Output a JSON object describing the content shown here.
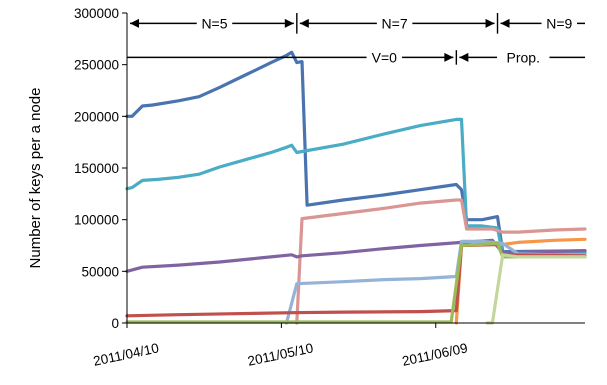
{
  "chart_data": {
    "type": "line",
    "title": "",
    "xlabel": "",
    "ylabel": "Number of keys per a node",
    "x_start": "2011/04/10",
    "x_end": "2011/07/08",
    "x_ticks": [
      "2011/04/10",
      "2011/05/10",
      "2011/06/09"
    ],
    "ylim": [
      0,
      300000
    ],
    "y_ticks": [
      0,
      50000,
      100000,
      150000,
      200000,
      250000,
      300000
    ],
    "y_tick_labels": [
      "0",
      "50000",
      "100000",
      "150000",
      "200000",
      "250000",
      "300000"
    ],
    "grid": false,
    "legend": "none",
    "series": [
      {
        "color": "#4a74b0",
        "points": [
          [
            "2011/04/10",
            200000
          ],
          [
            "2011/04/11",
            200000
          ],
          [
            "2011/04/13",
            210000
          ],
          [
            "2011/04/15",
            211000
          ],
          [
            "2011/04/20",
            215000
          ],
          [
            "2011/04/24",
            219000
          ],
          [
            "2011/04/28",
            228000
          ],
          [
            "2011/05/03",
            240000
          ],
          [
            "2011/05/08",
            252000
          ],
          [
            "2011/05/11",
            259000
          ],
          [
            "2011/05/12",
            262000
          ],
          [
            "2011/05/13",
            252000
          ],
          [
            "2011/05/14",
            253000
          ],
          [
            "2011/05/15",
            114000
          ],
          [
            "2011/05/22",
            119000
          ],
          [
            "2011/05/30",
            124000
          ],
          [
            "2011/06/06",
            129000
          ],
          [
            "2011/06/13",
            134000
          ],
          [
            "2011/06/14",
            129000
          ],
          [
            "2011/06/15",
            100000
          ],
          [
            "2011/06/18",
            100000
          ],
          [
            "2011/06/21",
            103000
          ],
          [
            "2011/06/22",
            69000
          ],
          [
            "2011/07/08",
            70000
          ]
        ]
      },
      {
        "color": "#4bacc6",
        "points": [
          [
            "2011/04/10",
            130000
          ],
          [
            "2011/04/11",
            131000
          ],
          [
            "2011/04/13",
            138000
          ],
          [
            "2011/04/16",
            139000
          ],
          [
            "2011/04/20",
            141000
          ],
          [
            "2011/04/24",
            144000
          ],
          [
            "2011/04/28",
            151000
          ],
          [
            "2011/05/03",
            158000
          ],
          [
            "2011/05/08",
            165000
          ],
          [
            "2011/05/11",
            170000
          ],
          [
            "2011/05/12",
            172000
          ],
          [
            "2011/05/13",
            165000
          ],
          [
            "2011/05/14",
            166000
          ],
          [
            "2011/05/22",
            173000
          ],
          [
            "2011/05/30",
            183000
          ],
          [
            "2011/06/06",
            191000
          ],
          [
            "2011/06/13",
            197000
          ],
          [
            "2011/06/14",
            197000
          ],
          [
            "2011/06/15",
            94000
          ],
          [
            "2011/06/18",
            94000
          ],
          [
            "2011/06/21",
            92000
          ],
          [
            "2011/06/22",
            66000
          ],
          [
            "2011/07/08",
            68000
          ]
        ]
      },
      {
        "color": "#d99694",
        "points": [
          [
            "2011/05/13",
            0
          ],
          [
            "2011/05/14",
            101000
          ],
          [
            "2011/05/22",
            106000
          ],
          [
            "2011/05/30",
            111000
          ],
          [
            "2011/06/06",
            116000
          ],
          [
            "2011/06/13",
            119000
          ],
          [
            "2011/06/14",
            119000
          ],
          [
            "2011/06/15",
            91000
          ],
          [
            "2011/06/20",
            91000
          ],
          [
            "2011/06/22",
            88000
          ],
          [
            "2011/06/25",
            88000
          ],
          [
            "2011/07/02",
            90000
          ],
          [
            "2011/07/08",
            91000
          ]
        ]
      },
      {
        "color": "#8064a2",
        "points": [
          [
            "2011/04/10",
            50000
          ],
          [
            "2011/04/13",
            54000
          ],
          [
            "2011/04/20",
            56000
          ],
          [
            "2011/04/28",
            59000
          ],
          [
            "2011/05/06",
            63000
          ],
          [
            "2011/05/12",
            66000
          ],
          [
            "2011/05/13",
            64000
          ],
          [
            "2011/05/14",
            65000
          ],
          [
            "2011/05/22",
            68000
          ],
          [
            "2011/05/30",
            72000
          ],
          [
            "2011/06/06",
            75000
          ],
          [
            "2011/06/14",
            78000
          ],
          [
            "2011/06/20",
            80000
          ],
          [
            "2011/06/22",
            68000
          ],
          [
            "2011/07/08",
            70000
          ]
        ]
      },
      {
        "color": "#f79646",
        "points": [
          [
            "2011/06/13",
            0
          ],
          [
            "2011/06/14",
            75000
          ],
          [
            "2011/06/20",
            76000
          ],
          [
            "2011/06/22",
            76000
          ],
          [
            "2011/06/25",
            78000
          ],
          [
            "2011/07/02",
            80000
          ],
          [
            "2011/07/08",
            81000
          ]
        ]
      },
      {
        "color": "#95b3d7",
        "points": [
          [
            "2011/05/11",
            0
          ],
          [
            "2011/05/13",
            38000
          ],
          [
            "2011/05/22",
            40000
          ],
          [
            "2011/05/30",
            42000
          ],
          [
            "2011/06/06",
            43000
          ],
          [
            "2011/06/13",
            45000
          ],
          [
            "2011/06/14",
            79000
          ],
          [
            "2011/06/18",
            79000
          ],
          [
            "2011/06/22",
            77000
          ],
          [
            "2011/06/25",
            67000
          ],
          [
            "2011/07/02",
            66000
          ],
          [
            "2011/07/08",
            66000
          ]
        ]
      },
      {
        "color": "#c0504d",
        "points": [
          [
            "2011/04/10",
            7000
          ],
          [
            "2011/04/20",
            8000
          ],
          [
            "2011/05/01",
            9000
          ],
          [
            "2011/05/12",
            10000
          ],
          [
            "2011/05/22",
            10500
          ],
          [
            "2011/06/06",
            11000
          ],
          [
            "2011/06/13",
            12000
          ],
          [
            "2011/06/14",
            75000
          ],
          [
            "2011/06/21",
            76000
          ],
          [
            "2011/06/22",
            66000
          ],
          [
            "2011/07/08",
            65000
          ]
        ]
      },
      {
        "color": "#9bbb59",
        "points": [
          [
            "2011/04/10",
            1000
          ],
          [
            "2011/05/10",
            1000
          ],
          [
            "2011/06/12",
            1000
          ],
          [
            "2011/06/14",
            75000
          ],
          [
            "2011/06/21",
            77000
          ],
          [
            "2011/06/22",
            64000
          ],
          [
            "2011/07/08",
            64000
          ]
        ]
      },
      {
        "color": "#c3d69b",
        "points": [
          [
            "2011/06/19",
            0
          ],
          [
            "2011/06/20",
            0
          ],
          [
            "2011/06/22",
            66000
          ],
          [
            "2011/06/25",
            64000
          ],
          [
            "2011/07/02",
            64000
          ],
          [
            "2011/07/08",
            64000
          ]
        ]
      }
    ],
    "annotations": [
      {
        "label": "N=5",
        "x_from": "2011/04/10",
        "x_to": "2011/05/13",
        "y": 290000,
        "arrow_left": true,
        "arrow_right": true,
        "label_x": "2011/04/27"
      },
      {
        "label": "N=7",
        "x_from": "2011/05/13",
        "x_to": "2011/06/21",
        "y": 290000,
        "arrow_left": true,
        "arrow_right": true,
        "label_x": "2011/06/01"
      },
      {
        "label": "N=9",
        "x_from": "2011/06/21",
        "x_to": "2011/07/08",
        "y": 290000,
        "arrow_left": true,
        "arrow_right": false,
        "label_x": "2011/07/03"
      },
      {
        "label": "V=0",
        "x_from": "2011/04/10",
        "x_to": "2011/06/13",
        "y": 257000,
        "arrow_left": false,
        "arrow_right": true,
        "label_x": "2011/05/30"
      },
      {
        "label": "Prop.",
        "x_from": "2011/06/13",
        "x_to": "2011/07/08",
        "y": 257000,
        "arrow_left": true,
        "arrow_right": false,
        "label_x": "2011/06/26"
      }
    ],
    "vertical_markers": [
      {
        "x": "2011/05/13",
        "y_from": 280000,
        "y_to": 300000
      },
      {
        "x": "2011/06/13",
        "y_from": 250000,
        "y_to": 264000
      },
      {
        "x": "2011/06/21",
        "y_from": 280000,
        "y_to": 300000
      }
    ]
  }
}
